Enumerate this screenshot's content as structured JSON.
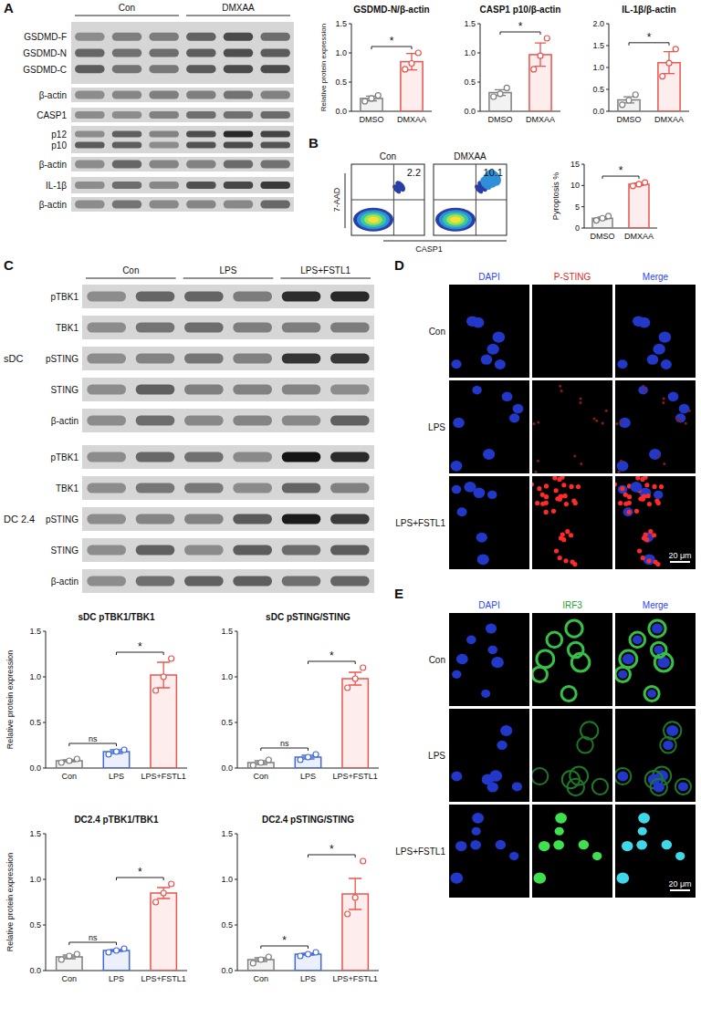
{
  "figure": {
    "panel_a": {
      "letter": "A",
      "groups": [
        "Con",
        "DMXAA"
      ],
      "rows": [
        "GSDMD-F",
        "GSDMD-N",
        "GSDMD-C",
        "β-actin",
        "CASP1",
        "p12",
        "p10",
        "β-actin",
        "IL-1β",
        "β-actin"
      ]
    },
    "panel_b": {
      "letter": "B",
      "y_label": "7-AAD",
      "x_label": "CASP1",
      "plots": [
        {
          "title": "Con",
          "value": 2.2
        },
        {
          "title": "DMXAA",
          "value": 10.1
        }
      ]
    },
    "panel_c": {
      "letter": "C",
      "groups": [
        "Con",
        "LPS",
        "LPS+FSTL1"
      ],
      "blots": [
        {
          "cell": "sDC",
          "rows": [
            "pTBK1",
            "TBK1",
            "pSTING",
            "STING",
            "β-actin"
          ]
        },
        {
          "cell": "DC 2.4",
          "rows": [
            "pTBK1",
            "TBK1",
            "pSTING",
            "STING",
            "β-actin"
          ]
        }
      ]
    },
    "panel_d": {
      "letter": "D",
      "columns": [
        "DAPI",
        "P-STING",
        "Merge"
      ],
      "rows": [
        "Con",
        "LPS",
        "LPS+FSTL1"
      ],
      "scale_bar": "20 μm"
    },
    "panel_e": {
      "letter": "E",
      "columns": [
        "DAPI",
        "IRF3",
        "Merge"
      ],
      "rows": [
        "Con",
        "LPS",
        "LPS+FSTL1"
      ],
      "scale_bar": "20 μm"
    }
  },
  "chart_data": [
    {
      "type": "bar",
      "title": "GSDMD-N/β-actin",
      "y_label": "Relative protein expression",
      "categories": [
        "DMSO",
        "DMXAA"
      ],
      "values": [
        0.22,
        0.85
      ],
      "errors": [
        0.04,
        0.14
      ],
      "points": [
        [
          0.17,
          0.22,
          0.27
        ],
        [
          0.72,
          0.82,
          1.0
        ]
      ],
      "colors": [
        "#7f7f7f",
        "#e8544e"
      ],
      "ylim": [
        0,
        1.5
      ],
      "yticks": [
        {
          "value": 0,
          "label": "0.0"
        },
        {
          "value": 0.5,
          "label": "0.5"
        },
        {
          "value": 1,
          "label": "1.0"
        },
        {
          "value": 1.5,
          "label": "1.5"
        }
      ],
      "annotations": [
        {
          "text": "*",
          "between": [
            0,
            1
          ]
        }
      ]
    },
    {
      "type": "bar",
      "title": "CASP1 p10/β-actin",
      "categories": [
        "DMSO",
        "DMXAA"
      ],
      "values": [
        0.32,
        0.97
      ],
      "errors": [
        0.05,
        0.2
      ],
      "points": [
        [
          0.25,
          0.3,
          0.4
        ],
        [
          0.72,
          0.95,
          1.25
        ]
      ],
      "colors": [
        "#7f7f7f",
        "#e8544e"
      ],
      "ylim": [
        0,
        1.5
      ],
      "yticks": [
        {
          "value": 0,
          "label": "0.0"
        },
        {
          "value": 0.5,
          "label": "0.5"
        },
        {
          "value": 1,
          "label": "1.0"
        },
        {
          "value": 1.5,
          "label": "1.5"
        }
      ],
      "annotations": [
        {
          "text": "*",
          "between": [
            0,
            1
          ]
        }
      ]
    },
    {
      "type": "bar",
      "title": "IL-1β/β-actin",
      "categories": [
        "DMSO",
        "DMXAA"
      ],
      "values": [
        0.26,
        1.11
      ],
      "errors": [
        0.07,
        0.25
      ],
      "points": [
        [
          0.15,
          0.25,
          0.38
        ],
        [
          0.8,
          1.1,
          1.42
        ]
      ],
      "colors": [
        "#7f7f7f",
        "#e8544e"
      ],
      "ylim": [
        0,
        2
      ],
      "yticks": [
        {
          "value": 0,
          "label": "0.0"
        },
        {
          "value": 0.5,
          "label": "0.5"
        },
        {
          "value": 1,
          "label": "1.0"
        },
        {
          "value": 1.5,
          "label": "1.5"
        },
        {
          "value": 2,
          "label": "2.0"
        }
      ],
      "annotations": [
        {
          "text": "*",
          "between": [
            0,
            1
          ]
        }
      ]
    },
    {
      "type": "bar",
      "y_label": "Pyroptosis %",
      "categories": [
        "DMSO",
        "DMXAA"
      ],
      "values": [
        2.3,
        10.3
      ],
      "errors": [
        0.3,
        0.3
      ],
      "points": [
        [
          1.8,
          2.3,
          2.8
        ],
        [
          9.9,
          10.3,
          10.7
        ]
      ],
      "colors": [
        "#7f7f7f",
        "#e8544e"
      ],
      "ylim": [
        0,
        15
      ],
      "yticks": [
        0,
        5,
        10,
        15
      ],
      "annotations": [
        {
          "text": "*",
          "between": [
            0,
            1
          ]
        }
      ]
    },
    {
      "type": "bar",
      "title": "sDC pTBK1/TBK1",
      "y_label": "Relative protein expression",
      "categories": [
        "Con",
        "LPS",
        "LPS+FSTL1"
      ],
      "values": [
        0.08,
        0.18,
        1.02
      ],
      "errors": [
        0.01,
        0.02,
        0.14
      ],
      "points": [
        [
          0.06,
          0.08,
          0.1
        ],
        [
          0.15,
          0.18,
          0.2
        ],
        [
          0.85,
          1.0,
          1.2
        ]
      ],
      "colors": [
        "#7f7f7f",
        "#4169e1",
        "#e8544e"
      ],
      "ylim": [
        0,
        1.5
      ],
      "yticks": [
        {
          "value": 0,
          "label": "0.0"
        },
        {
          "value": 0.5,
          "label": "0.5"
        },
        {
          "value": 1,
          "label": "1.0"
        },
        {
          "value": 1.5,
          "label": "1.5"
        }
      ],
      "annotations": [
        {
          "text": "ns",
          "between": [
            0,
            1
          ]
        },
        {
          "text": "*",
          "between": [
            1,
            2
          ]
        }
      ]
    },
    {
      "type": "bar",
      "title": "sDC pSTING/STING",
      "categories": [
        "Con",
        "LPS",
        "LPS+FSTL1"
      ],
      "values": [
        0.06,
        0.12,
        0.98
      ],
      "errors": [
        0.02,
        0.02,
        0.07
      ],
      "points": [
        [
          0.03,
          0.06,
          0.09
        ],
        [
          0.09,
          0.12,
          0.15
        ],
        [
          0.88,
          0.98,
          1.1
        ]
      ],
      "colors": [
        "#7f7f7f",
        "#4169e1",
        "#e8544e"
      ],
      "ylim": [
        0,
        1.5
      ],
      "yticks": [
        {
          "value": 0,
          "label": "0.0"
        },
        {
          "value": 0.5,
          "label": "0.5"
        },
        {
          "value": 1,
          "label": "1.0"
        },
        {
          "value": 1.5,
          "label": "1.5"
        }
      ],
      "annotations": [
        {
          "text": "ns",
          "between": [
            0,
            1
          ]
        },
        {
          "text": "*",
          "between": [
            1,
            2
          ]
        }
      ]
    },
    {
      "type": "bar",
      "title": "DC2.4 pTBK1/TBK1",
      "y_label": "Relative protein expression",
      "categories": [
        "Con",
        "LPS",
        "LPS+FSTL1"
      ],
      "values": [
        0.15,
        0.22,
        0.85
      ],
      "errors": [
        0.02,
        0.01,
        0.06
      ],
      "points": [
        [
          0.12,
          0.16,
          0.18
        ],
        [
          0.2,
          0.22,
          0.24
        ],
        [
          0.75,
          0.85,
          0.95
        ]
      ],
      "colors": [
        "#7f7f7f",
        "#4169e1",
        "#e8544e"
      ],
      "ylim": [
        0,
        1.5
      ],
      "yticks": [
        {
          "value": 0,
          "label": "0.0"
        },
        {
          "value": 0.5,
          "label": "0.5"
        },
        {
          "value": 1,
          "label": "1.0"
        },
        {
          "value": 1.5,
          "label": "1.5"
        }
      ],
      "annotations": [
        {
          "text": "ns",
          "between": [
            0,
            1
          ]
        },
        {
          "text": "*",
          "between": [
            1,
            2
          ]
        }
      ]
    },
    {
      "type": "bar",
      "title": "DC2.4 pSTING/STING",
      "categories": [
        "Con",
        "LPS",
        "LPS+FSTL1"
      ],
      "values": [
        0.12,
        0.18,
        0.84
      ],
      "errors": [
        0.02,
        0.01,
        0.17
      ],
      "points": [
        [
          0.08,
          0.12,
          0.15
        ],
        [
          0.16,
          0.18,
          0.2
        ],
        [
          0.62,
          0.8,
          1.2
        ]
      ],
      "colors": [
        "#7f7f7f",
        "#4169e1",
        "#e8544e"
      ],
      "ylim": [
        0,
        1.5
      ],
      "yticks": [
        {
          "value": 0,
          "label": "0.0"
        },
        {
          "value": 0.5,
          "label": "0.5"
        },
        {
          "value": 1,
          "label": "1.0"
        },
        {
          "value": 1.5,
          "label": "1.5"
        }
      ],
      "annotations": [
        {
          "text": "*",
          "between": [
            0,
            1
          ]
        },
        {
          "text": "*",
          "between": [
            1,
            2
          ]
        }
      ]
    }
  ]
}
